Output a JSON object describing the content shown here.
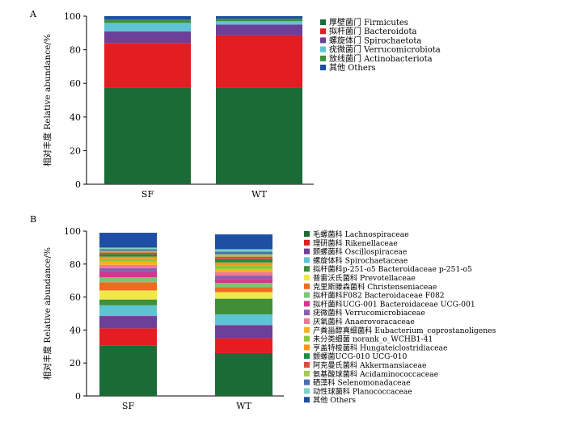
{
  "chart_data": [
    {
      "panel_label": "A",
      "type": "bar",
      "stacked": true,
      "ylabel": "相对丰度 Relative abundance/%",
      "ylim": [
        0,
        100
      ],
      "yticks": [
        0,
        20,
        40,
        60,
        80,
        100
      ],
      "grid": false,
      "legend_position": "right",
      "categories": [
        "SF",
        "WT"
      ],
      "series": [
        {
          "name": "厚壁菌门 Firmicutes",
          "color": "#1b6b37",
          "values": [
            57.5,
            57.5
          ]
        },
        {
          "name": "拟杆菌门 Bacteroidota",
          "color": "#e31d22",
          "values": [
            26.5,
            31.0
          ]
        },
        {
          "name": "螺旋体门 Spirochaetota",
          "color": "#6c3f98",
          "values": [
            7.0,
            6.5
          ]
        },
        {
          "name": "疣微菌门 Verrucomicrobiota",
          "color": "#5ec3d4",
          "values": [
            5.0,
            2.0
          ]
        },
        {
          "name": "放线菌门 Actinobacteriota",
          "color": "#3f8e3a",
          "values": [
            2.0,
            1.5
          ]
        },
        {
          "name": "其他 Others",
          "color": "#1f4fa3",
          "values": [
            2.0,
            1.5
          ]
        }
      ]
    },
    {
      "panel_label": "B",
      "type": "bar",
      "stacked": true,
      "ylabel": "相对丰度 Relative abundance/%",
      "ylim": [
        0,
        100
      ],
      "yticks": [
        0,
        20,
        40,
        60,
        80,
        100
      ],
      "grid": false,
      "legend_position": "right",
      "categories": [
        "SF",
        "WT"
      ],
      "series": [
        {
          "name": "毛螺菌科 Lachnospiraceae",
          "color": "#1b6b37",
          "values": [
            30.5,
            26.0
          ]
        },
        {
          "name": "理研菌科 Rikenellaceae",
          "color": "#e31d22",
          "values": [
            10.5,
            9.0
          ]
        },
        {
          "name": "颤螺菌科 Oscillospiraceae",
          "color": "#6c3f98",
          "values": [
            7.5,
            8.0
          ]
        },
        {
          "name": "螺旋体科 Spirochaetaceae",
          "color": "#5ec3d4",
          "values": [
            6.5,
            6.5
          ]
        },
        {
          "name": "拟杆菌科p-251-o5 Bacteroidaceae p-251-o5",
          "color": "#3f8e3a",
          "values": [
            3.5,
            9.5
          ]
        },
        {
          "name": "普雷沃氏菌科 Prevotellaceae",
          "color": "#f0e84a",
          "values": [
            5.5,
            4.0
          ]
        },
        {
          "name": "克里斯滕森菌科 Christenseniaceae",
          "color": "#ee6b1f",
          "values": [
            5.0,
            3.0
          ]
        },
        {
          "name": "拟杆菌科F082 Bacteroidaceae F082",
          "color": "#7cc576",
          "values": [
            3.0,
            2.5
          ]
        },
        {
          "name": "拟杆菌科UCG-001 Bacteroidaceae UCG-001",
          "color": "#d4368f",
          "values": [
            3.0,
            2.5
          ]
        },
        {
          "name": "疣微菌科 Verrucomicrobiaceae",
          "color": "#8a5fb0",
          "values": [
            2.5,
            2.0
          ]
        },
        {
          "name": "厌氧菌科 Anaerovoracaceae",
          "color": "#f27896",
          "values": [
            2.0,
            2.0
          ]
        },
        {
          "name": "产粪甾醇真细菌科 Eubacterium_coprostanoligenes",
          "color": "#f5b224",
          "values": [
            2.0,
            2.0
          ]
        },
        {
          "name": "未分类细菌 norank_o_WCHB1-41",
          "color": "#8cc63f",
          "values": [
            1.5,
            2.0
          ]
        },
        {
          "name": "亨盖特梭菌科 Hungateiclostridiaceae",
          "color": "#f7941d",
          "values": [
            1.5,
            2.0
          ]
        },
        {
          "name": "颤螺菌UCG-010 UCG-010",
          "color": "#1c8a46",
          "values": [
            1.5,
            2.0
          ]
        },
        {
          "name": "阿克曼氏菌科 Akkermansiaceae",
          "color": "#e04a3f",
          "values": [
            1.0,
            1.5
          ]
        },
        {
          "name": "氨基酸球菌科 Acidaminococcaceae",
          "color": "#a3c94e",
          "values": [
            1.0,
            1.5
          ]
        },
        {
          "name": "硒藻科 Selenomonadaceae",
          "color": "#4a6fb5",
          "values": [
            1.0,
            1.5
          ]
        },
        {
          "name": "动性球菌科 Planococcaceae",
          "color": "#7fd3c6",
          "values": [
            1.0,
            1.5
          ]
        },
        {
          "name": "其他 Others",
          "color": "#1f4fa3",
          "values": [
            9.0,
            9.0
          ]
        }
      ]
    }
  ]
}
